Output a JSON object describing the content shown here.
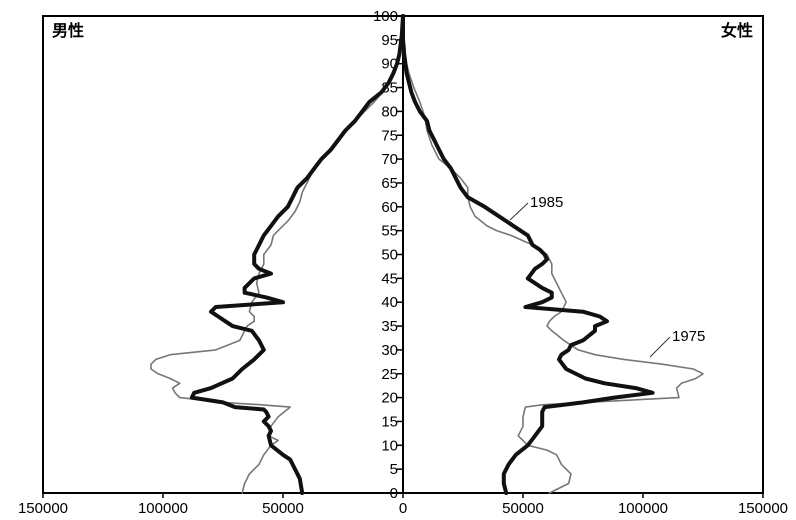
{
  "chart_data": {
    "type": "line",
    "title": "",
    "xlabel": "",
    "ylabel": "",
    "left_label": "男性",
    "right_label": "女性",
    "x_range": [
      150000,
      0,
      150000
    ],
    "x_ticks": [
      {
        "side": "left",
        "value": 150000,
        "label": "150000"
      },
      {
        "side": "left",
        "value": 100000,
        "label": "100000"
      },
      {
        "side": "left",
        "value": 50000,
        "label": "50000"
      },
      {
        "side": "center",
        "value": 0,
        "label": "0"
      },
      {
        "side": "right",
        "value": 50000,
        "label": "50000"
      },
      {
        "side": "right",
        "value": 100000,
        "label": "100000"
      },
      {
        "side": "right",
        "value": 150000,
        "label": "150000"
      }
    ],
    "y_range": [
      0,
      100
    ],
    "y_ticks": [
      "0",
      "5",
      "10",
      "15",
      "20",
      "25",
      "30",
      "35",
      "40",
      "45",
      "50",
      "55",
      "60",
      "65",
      "70",
      "75",
      "80",
      "85",
      "90",
      "95",
      "100"
    ],
    "series": [
      {
        "name": "1975",
        "color": "#777777",
        "male": [
          [
            0,
            67000
          ],
          [
            2,
            66000
          ],
          [
            4,
            64000
          ],
          [
            6,
            60000
          ],
          [
            8,
            58000
          ],
          [
            10,
            55000
          ],
          [
            11,
            52000
          ],
          [
            12,
            56000
          ],
          [
            14,
            55000
          ],
          [
            16,
            52000
          ],
          [
            18,
            47000
          ],
          [
            18.5,
            59000
          ],
          [
            19,
            75000
          ],
          [
            20,
            93000
          ],
          [
            21,
            95000
          ],
          [
            22,
            96000
          ],
          [
            23,
            93000
          ],
          [
            24,
            97000
          ],
          [
            25,
            102000
          ],
          [
            26,
            105000
          ],
          [
            27,
            105000
          ],
          [
            28,
            103000
          ],
          [
            29,
            97000
          ],
          [
            30,
            78000
          ],
          [
            32,
            68000
          ],
          [
            34,
            66000
          ],
          [
            35,
            65000
          ],
          [
            36,
            62000
          ],
          [
            37,
            62000
          ],
          [
            38,
            64000
          ],
          [
            40,
            63000
          ],
          [
            42,
            60000
          ],
          [
            44,
            61000
          ],
          [
            46,
            60000
          ],
          [
            48,
            58000
          ],
          [
            50,
            58000
          ],
          [
            52,
            55000
          ],
          [
            54,
            54000
          ],
          [
            55,
            52000
          ],
          [
            57,
            48000
          ],
          [
            59,
            45000
          ],
          [
            61,
            43000
          ],
          [
            63,
            42000
          ],
          [
            65,
            40000
          ],
          [
            67,
            38000
          ],
          [
            70,
            34000
          ],
          [
            73,
            29000
          ],
          [
            76,
            24000
          ],
          [
            79,
            18000
          ],
          [
            82,
            12000
          ],
          [
            85,
            7000
          ],
          [
            88,
            3500
          ],
          [
            90,
            2000
          ],
          [
            93,
            1000
          ],
          [
            95,
            500
          ],
          [
            100,
            0
          ]
        ],
        "female": [
          [
            0,
            61000
          ],
          [
            2,
            69000
          ],
          [
            4,
            70000
          ],
          [
            6,
            66000
          ],
          [
            8,
            64000
          ],
          [
            9,
            60000
          ],
          [
            10,
            52000
          ],
          [
            12,
            48000
          ],
          [
            14,
            50000
          ],
          [
            16,
            50000
          ],
          [
            18,
            51000
          ],
          [
            18.5,
            58000
          ],
          [
            19,
            76000
          ],
          [
            20,
            115000
          ],
          [
            22,
            114000
          ],
          [
            23,
            116000
          ],
          [
            24,
            122000
          ],
          [
            25,
            125000
          ],
          [
            26,
            121000
          ],
          [
            27,
            108000
          ],
          [
            28,
            92000
          ],
          [
            29,
            80000
          ],
          [
            30,
            73000
          ],
          [
            32,
            67000
          ],
          [
            34,
            62000
          ],
          [
            35,
            60000
          ],
          [
            36,
            61000
          ],
          [
            37,
            63000
          ],
          [
            38,
            66000
          ],
          [
            40,
            68000
          ],
          [
            42,
            66000
          ],
          [
            44,
            64000
          ],
          [
            46,
            62000
          ],
          [
            48,
            62000
          ],
          [
            50,
            60000
          ],
          [
            52,
            54000
          ],
          [
            54,
            45000
          ],
          [
            55,
            39000
          ],
          [
            56,
            35000
          ],
          [
            58,
            30000
          ],
          [
            60,
            28000
          ],
          [
            62,
            27000
          ],
          [
            64,
            27000
          ],
          [
            66,
            24000
          ],
          [
            68,
            20000
          ],
          [
            70,
            15000
          ],
          [
            73,
            12000
          ],
          [
            76,
            10000
          ],
          [
            79,
            9000
          ],
          [
            82,
            7000
          ],
          [
            85,
            4500
          ],
          [
            88,
            2500
          ],
          [
            90,
            1500
          ],
          [
            93,
            700
          ],
          [
            95,
            300
          ],
          [
            100,
            0
          ]
        ]
      },
      {
        "name": "1985",
        "color": "#111111",
        "male": [
          [
            0,
            42000
          ],
          [
            3,
            43000
          ],
          [
            5,
            45000
          ],
          [
            7,
            47000
          ],
          [
            8,
            50000
          ],
          [
            10,
            55000
          ],
          [
            12,
            56000
          ],
          [
            13,
            55000
          ],
          [
            14,
            56000
          ],
          [
            15,
            58000
          ],
          [
            16,
            56000
          ],
          [
            17,
            57000
          ],
          [
            17.5,
            58000
          ],
          [
            18,
            70000
          ],
          [
            19,
            75000
          ],
          [
            20,
            88000
          ],
          [
            21,
            87000
          ],
          [
            22,
            80000
          ],
          [
            24,
            71000
          ],
          [
            26,
            67000
          ],
          [
            28,
            62000
          ],
          [
            30,
            58000
          ],
          [
            32,
            60000
          ],
          [
            34,
            63000
          ],
          [
            35,
            71000
          ],
          [
            36,
            74000
          ],
          [
            37,
            77000
          ],
          [
            38,
            80000
          ],
          [
            39,
            78000
          ],
          [
            40,
            50000
          ],
          [
            41,
            57000
          ],
          [
            42,
            66000
          ],
          [
            43,
            66000
          ],
          [
            45,
            62000
          ],
          [
            46,
            55000
          ],
          [
            47,
            60000
          ],
          [
            48,
            62000
          ],
          [
            50,
            62000
          ],
          [
            52,
            60000
          ],
          [
            54,
            58000
          ],
          [
            56,
            55000
          ],
          [
            58,
            52000
          ],
          [
            60,
            48000
          ],
          [
            62,
            46000
          ],
          [
            64,
            44000
          ],
          [
            66,
            40000
          ],
          [
            68,
            37000
          ],
          [
            70,
            34000
          ],
          [
            72,
            30000
          ],
          [
            74,
            27000
          ],
          [
            76,
            24000
          ],
          [
            78,
            20000
          ],
          [
            80,
            17000
          ],
          [
            82,
            14000
          ],
          [
            84,
            9000
          ],
          [
            86,
            6000
          ],
          [
            88,
            4000
          ],
          [
            90,
            2500
          ],
          [
            92,
            1500
          ],
          [
            94,
            1000
          ],
          [
            96,
            500
          ],
          [
            100,
            0
          ]
        ],
        "female": [
          [
            0,
            43000
          ],
          [
            2,
            42000
          ],
          [
            4,
            42000
          ],
          [
            6,
            44000
          ],
          [
            8,
            47000
          ],
          [
            10,
            52000
          ],
          [
            12,
            55000
          ],
          [
            14,
            58000
          ],
          [
            16,
            58000
          ],
          [
            17,
            58000
          ],
          [
            18,
            59000
          ],
          [
            19,
            75000
          ],
          [
            20,
            88000
          ],
          [
            21,
            104000
          ],
          [
            22,
            97000
          ],
          [
            23,
            84000
          ],
          [
            24,
            76000
          ],
          [
            26,
            68000
          ],
          [
            28,
            65000
          ],
          [
            29,
            66000
          ],
          [
            30,
            69000
          ],
          [
            31,
            70000
          ],
          [
            32,
            75000
          ],
          [
            34,
            80000
          ],
          [
            35,
            80000
          ],
          [
            36,
            85000
          ],
          [
            37,
            82000
          ],
          [
            38,
            75000
          ],
          [
            39,
            51000
          ],
          [
            40,
            58000
          ],
          [
            41,
            62000
          ],
          [
            42,
            62000
          ],
          [
            43,
            58000
          ],
          [
            45,
            52000
          ],
          [
            47,
            55000
          ],
          [
            48,
            58000
          ],
          [
            49,
            60000
          ],
          [
            50,
            59000
          ],
          [
            51,
            57000
          ],
          [
            52,
            54000
          ],
          [
            54,
            52000
          ],
          [
            56,
            46000
          ],
          [
            58,
            40000
          ],
          [
            60,
            34000
          ],
          [
            62,
            27000
          ],
          [
            64,
            24000
          ],
          [
            66,
            22000
          ],
          [
            68,
            20000
          ],
          [
            70,
            17000
          ],
          [
            72,
            15000
          ],
          [
            74,
            13000
          ],
          [
            76,
            11000
          ],
          [
            78,
            10000
          ],
          [
            80,
            7000
          ],
          [
            82,
            5000
          ],
          [
            84,
            3500
          ],
          [
            86,
            2500
          ],
          [
            88,
            1500
          ],
          [
            90,
            1000
          ],
          [
            92,
            500
          ],
          [
            94,
            200
          ],
          [
            95,
            0
          ],
          [
            100,
            0
          ]
        ]
      }
    ],
    "annotations": [
      {
        "label": "1985",
        "series": "1985"
      },
      {
        "label": "1975",
        "series": "1975"
      }
    ]
  }
}
